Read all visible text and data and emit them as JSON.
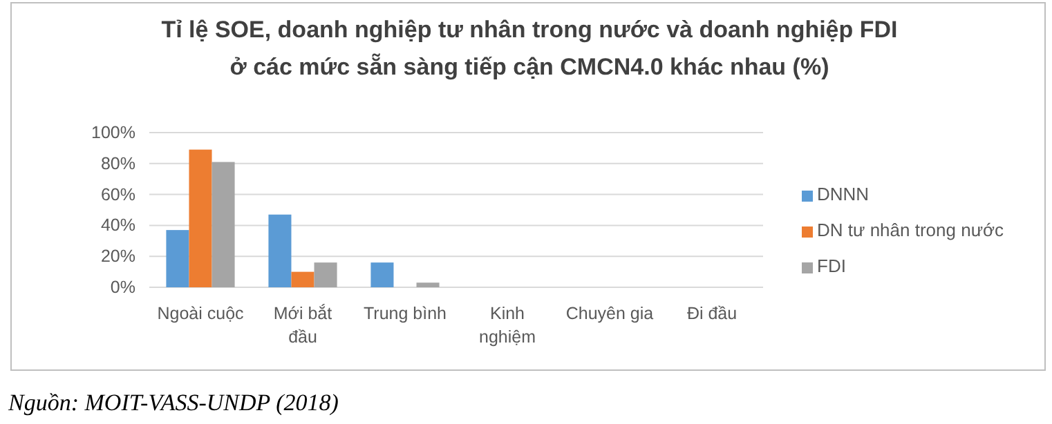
{
  "chart_data": {
    "type": "bar",
    "title": "Tỉ lệ SOE, doanh nghiệp tư nhân trong nước và doanh nghiệp FDI ở các mức sẵn sàng tiếp cận CMCN4.0 khác nhau (%)",
    "categories": [
      "Ngoài cuộc",
      "Mới bắt đầu",
      "Trung bình",
      "Kinh nghiệm",
      "Chuyên gia",
      "Đi đầu"
    ],
    "series": [
      {
        "name": "DNNN",
        "color": "#5b9bd5",
        "values": [
          37,
          47,
          16,
          0,
          0,
          0
        ]
      },
      {
        "name": "DN tư nhân trong nước",
        "color": "#ed7d31",
        "values": [
          89,
          10,
          0,
          0,
          0,
          0
        ]
      },
      {
        "name": "FDI",
        "color": "#a5a5a5",
        "values": [
          81,
          16,
          3,
          0,
          0,
          0
        ]
      }
    ],
    "ylim": [
      0,
      100
    ],
    "yticks": [
      {
        "value": 0,
        "label": "0%"
      },
      {
        "value": 20,
        "label": "20%"
      },
      {
        "value": 40,
        "label": "40%"
      },
      {
        "value": 60,
        "label": "60%"
      },
      {
        "value": 80,
        "label": "80%"
      },
      {
        "value": 100,
        "label": "100%"
      }
    ],
    "grid": "y",
    "legend": "right",
    "annotations": [
      "Nguồn: MOIT-VASS-UNDP (2018)"
    ]
  }
}
